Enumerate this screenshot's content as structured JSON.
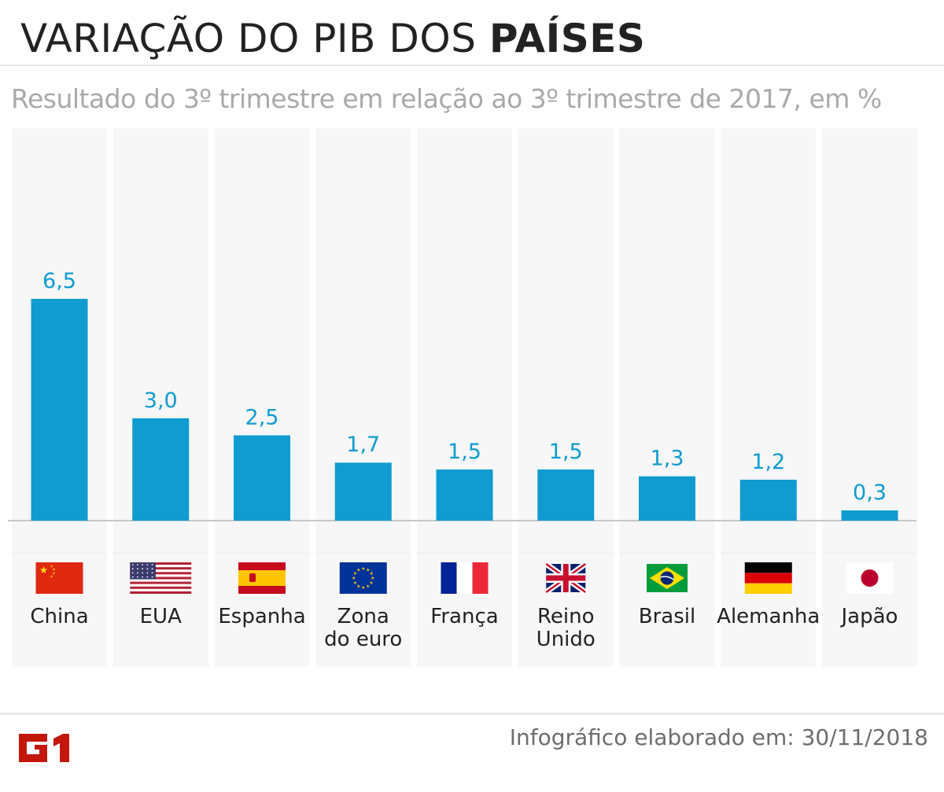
{
  "header": {
    "title_regular": "VARIAÇÃO DO PIB DOS ",
    "title_bold": "PAÍSES",
    "subtitle": "Resultado do 3º trimestre em relação ao 3º trimestre de 2017, em %"
  },
  "chart_data": {
    "type": "bar",
    "title": "VARIAÇÃO DO PIB DOS PAÍSES",
    "subtitle": "Resultado do 3º trimestre em relação ao 3º trimestre de 2017, em %",
    "categories": [
      "China",
      "EUA",
      "Espanha",
      "Zona do euro",
      "França",
      "Reino Unido",
      "Brasil",
      "Alemanha",
      "Japão"
    ],
    "category_lines": [
      [
        "China"
      ],
      [
        "EUA"
      ],
      [
        "Espanha"
      ],
      [
        "Zona",
        "do euro"
      ],
      [
        "França"
      ],
      [
        "Reino",
        "Unido"
      ],
      [
        "Brasil"
      ],
      [
        "Alemanha"
      ],
      [
        "Japão"
      ]
    ],
    "values": [
      6.5,
      3.0,
      2.5,
      1.7,
      1.5,
      1.5,
      1.3,
      1.2,
      0.3
    ],
    "value_labels": [
      "6,5",
      "3,0",
      "2,5",
      "1,7",
      "1,5",
      "1,5",
      "1,3",
      "1,2",
      "0,3"
    ],
    "flags": [
      "china-flag",
      "usa-flag",
      "spain-flag",
      "eu-flag",
      "france-flag",
      "uk-flag",
      "brazil-flag",
      "germany-flag",
      "japan-flag"
    ],
    "xlabel": "",
    "ylabel": "",
    "ylim": [
      0,
      11.5
    ],
    "grid": false,
    "colors": {
      "bar": "#109bd1",
      "value_label": "#109bd1",
      "column_bg": "#f7f7f7",
      "baseline": "#c8c8c8"
    }
  },
  "footer": {
    "logo_text": "G1",
    "logo_color": "#c4170c",
    "credit": "Infográfico elaborado em: 30/11/2018"
  }
}
